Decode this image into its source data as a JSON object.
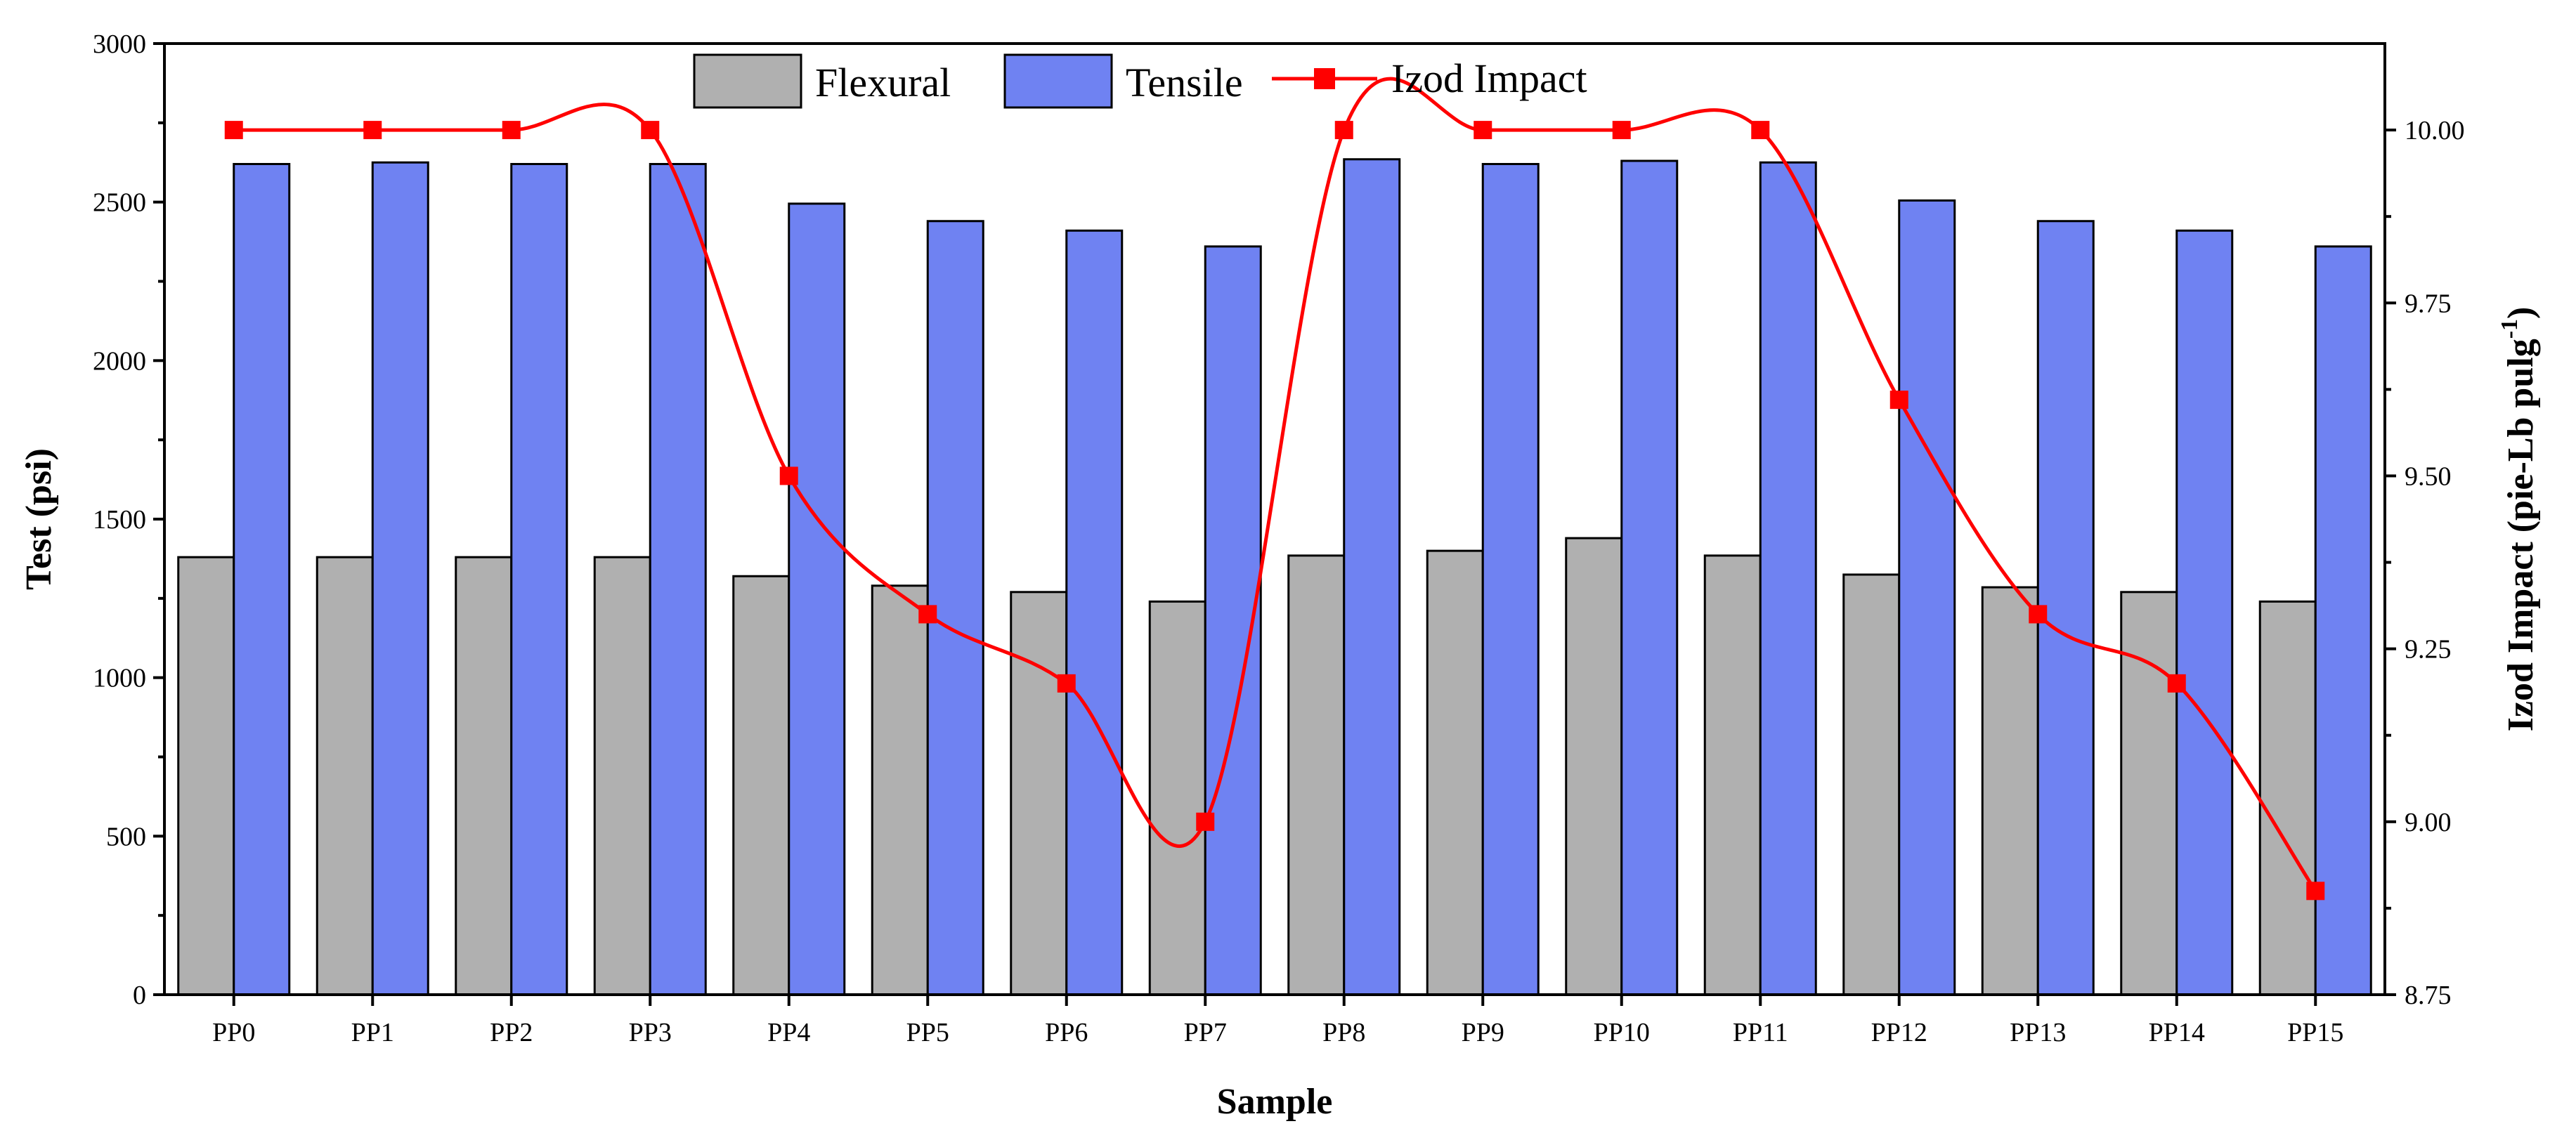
{
  "chart_data": {
    "type": "bar",
    "title": "",
    "xlabel": "Sample",
    "ylabel": "Test (psi)",
    "y2label_main": "Izod Impact (pie-Lb pulg",
    "y2label_sup": "-1",
    "y2label_end": ")",
    "categories": [
      "PP0",
      "PP1",
      "PP2",
      "PP3",
      "PP4",
      "PP5",
      "PP6",
      "PP7",
      "PP8",
      "PP9",
      "PP10",
      "PP11",
      "PP12",
      "PP13",
      "PP14",
      "PP15"
    ],
    "ylim": [
      0,
      3000
    ],
    "yticks": [
      0,
      500,
      1000,
      1500,
      2000,
      2500,
      3000
    ],
    "y2lim": [
      8.75,
      10.125
    ],
    "y2ticks": [
      8.75,
      9.0,
      9.25,
      9.5,
      9.75,
      10.0
    ],
    "y2tick_labels": [
      "8.75",
      "9.00",
      "9.25",
      "9.50",
      "9.75",
      "10.00"
    ],
    "series": [
      {
        "name": "Flexural",
        "axis": "left",
        "kind": "bar",
        "color": "#b0b0b0",
        "values": [
          1380,
          1380,
          1380,
          1380,
          1320,
          1290,
          1270,
          1240,
          1385,
          1400,
          1440,
          1385,
          1325,
          1285,
          1270,
          1240
        ]
      },
      {
        "name": "Tensile",
        "axis": "left",
        "kind": "bar",
        "color": "#6f82f2",
        "values": [
          2620,
          2625,
          2620,
          2620,
          2495,
          2440,
          2410,
          2360,
          2635,
          2620,
          2630,
          2625,
          2505,
          2440,
          2410,
          2360
        ]
      },
      {
        "name": "Izod Impact",
        "axis": "right",
        "kind": "line",
        "color": "#ff0000",
        "values": [
          10.0,
          10.0,
          10.0,
          10.0,
          9.5,
          9.3,
          9.2,
          9.0,
          10.0,
          10.0,
          10.0,
          10.0,
          9.61,
          9.3,
          9.2,
          8.9
        ]
      }
    ],
    "legend": [
      "Flexural",
      "Tensile",
      "Izod Impact"
    ],
    "legend_position": "top-center",
    "grid": false
  }
}
